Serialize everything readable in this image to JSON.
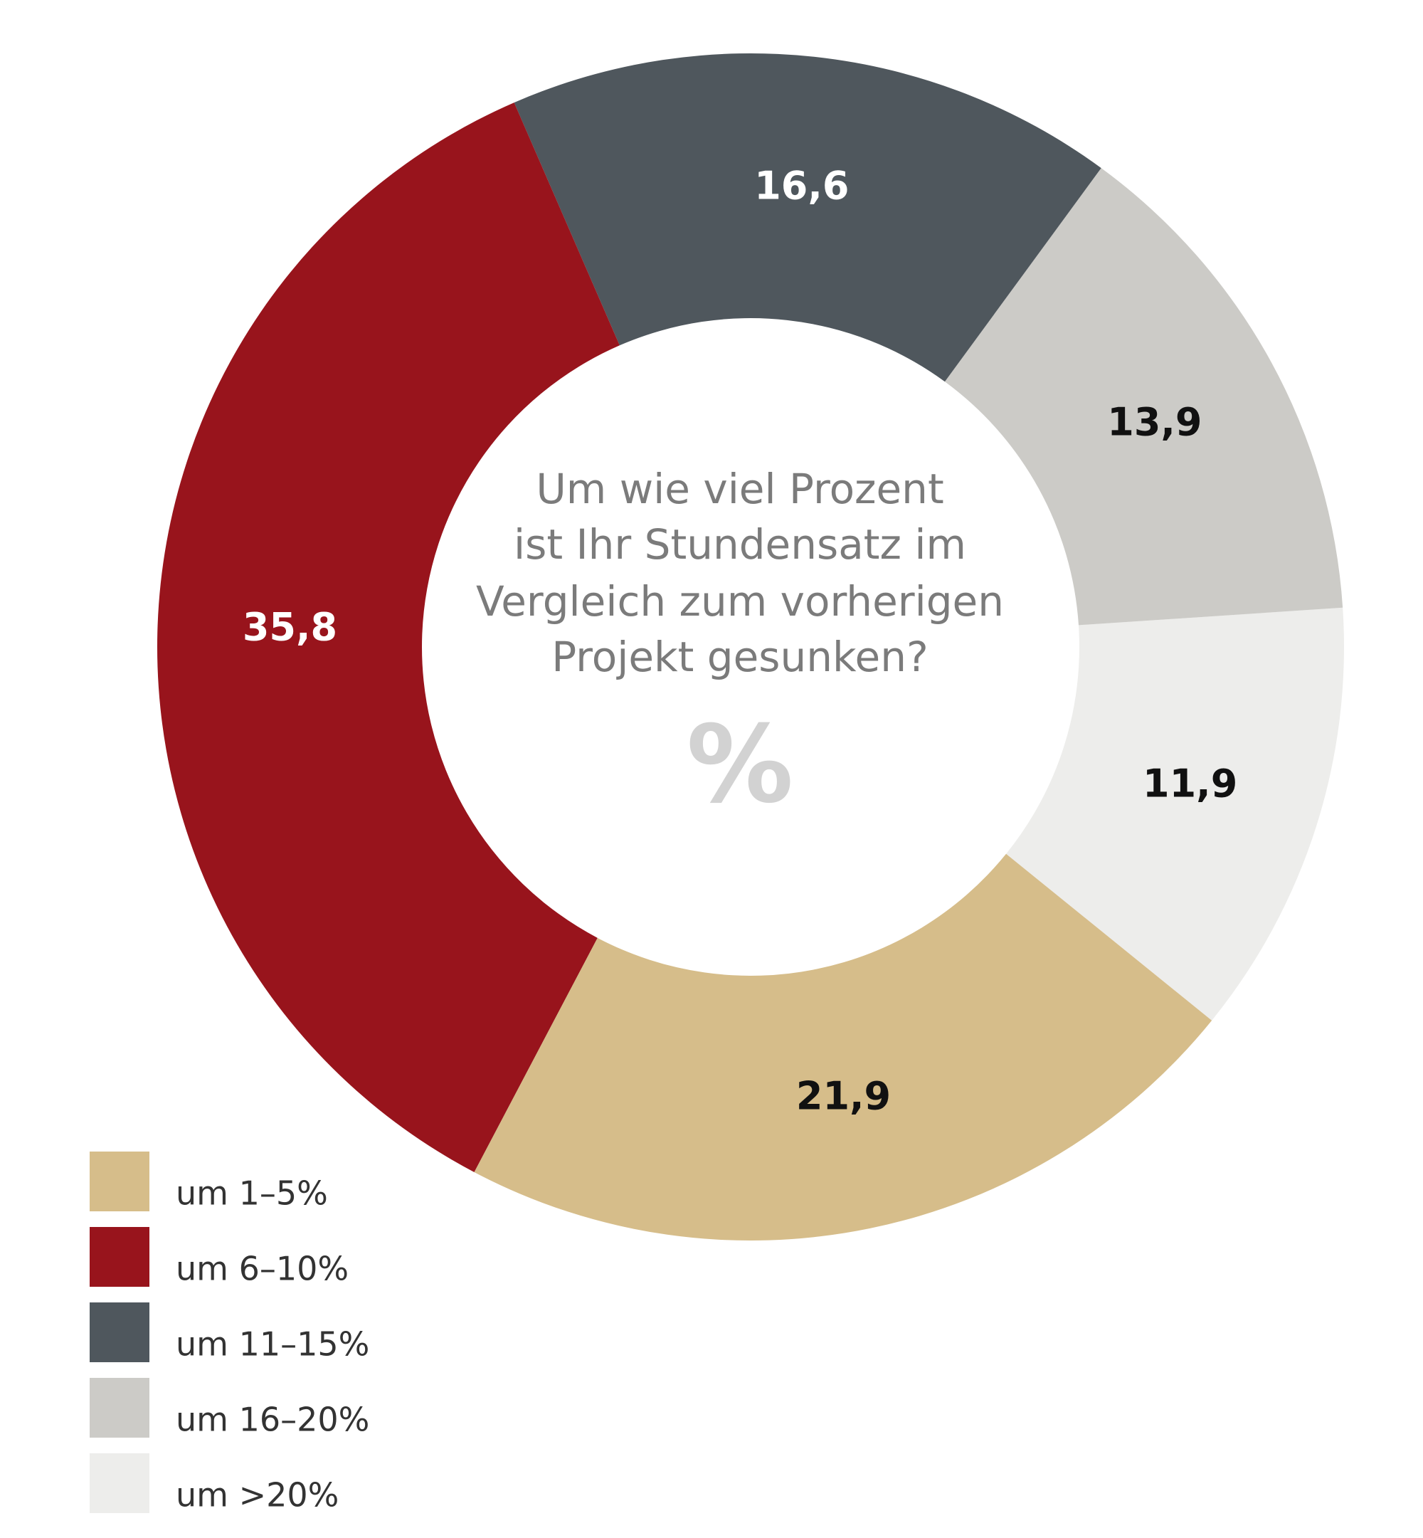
{
  "chart_data": {
    "type": "donut",
    "title": [
      "Um wie viel Prozent",
      "ist Ihr Stundensatz im",
      "Vergleich zum vorherigen",
      "Projekt gesunken?"
    ],
    "center_label": "%",
    "categories": [
      "um 1–5%",
      "um 6–10%",
      "um 11–15%",
      "um 16–20%",
      "um >20%"
    ],
    "values": [
      21.9,
      35.8,
      16.6,
      13.9,
      11.9
    ],
    "value_labels": [
      "21,9",
      "35,8",
      "16,6",
      "13,9",
      "11,9"
    ],
    "colors": [
      "#d6bd8a",
      "#98141c",
      "#4f575d",
      "#cccbc7",
      "#ededeb"
    ],
    "start_angle": 129,
    "legend": "bottom-left"
  }
}
